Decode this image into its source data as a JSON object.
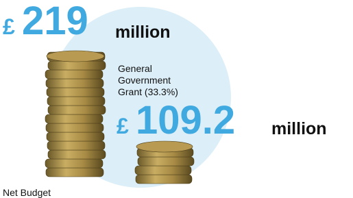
{
  "headline": {
    "currency": "£",
    "figure": "219",
    "unit": "million"
  },
  "grant": {
    "label": [
      "General",
      "Government",
      "Grant (33.3%)"
    ],
    "currency": "£",
    "figure": "109.2",
    "unit": "million"
  },
  "footer": "Net Budget"
}
